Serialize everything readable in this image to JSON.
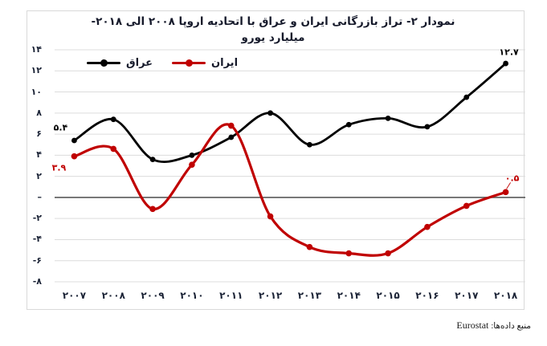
{
  "title": {
    "line1": "نمودار ۲- تراز بازرگانی ایران و عراق با اتحادیه اروپا ۲۰۰۸ الی ۲۰۱۸-",
    "line2": "میلیارد یورو"
  },
  "footer": {
    "label_fa": "منبع داده‌ها:",
    "source": "Eurostat"
  },
  "chart_data": {
    "type": "line",
    "x": [
      2007,
      2008,
      2009,
      2010,
      2011,
      2012,
      2013,
      2014,
      2015,
      2016,
      2017,
      2018
    ],
    "x_labels_fa": [
      "۲۰۰۷",
      "۲۰۰۸",
      "۲۰۰۹",
      "۲۰۱۰",
      "۲۰۱۱",
      "۲۰۱۲",
      "۲۰۱۳",
      "۲۰۱۴",
      "۲۰۱۵",
      "۲۰۱۶",
      "۲۰۱۷",
      "۲۰۱۸"
    ],
    "ylim": [
      -8,
      14
    ],
    "ytick_step": 2,
    "yticks": [
      {
        "value": 14,
        "label": "۱۴"
      },
      {
        "value": 12,
        "label": "۱۲"
      },
      {
        "value": 10,
        "label": "۱۰"
      },
      {
        "value": 8,
        "label": "۸"
      },
      {
        "value": 6,
        "label": "۶"
      },
      {
        "value": 4,
        "label": "۴"
      },
      {
        "value": 2,
        "label": "۲"
      },
      {
        "value": 0,
        "label": "–"
      },
      {
        "value": -2,
        "label": "-۲"
      },
      {
        "value": -4,
        "label": "-۴"
      },
      {
        "value": -6,
        "label": "-۶"
      },
      {
        "value": -8,
        "label": "-۸"
      }
    ],
    "grid": true,
    "gridline_color": "#dcdcdc",
    "zero_line_color": "#595959",
    "legend_position": "top-left",
    "series": [
      {
        "name": "عراق",
        "color": "#000000",
        "values": [
          5.4,
          7.4,
          3.6,
          4.0,
          5.7,
          8.0,
          5.0,
          6.9,
          7.5,
          6.7,
          9.5,
          12.7
        ],
        "annotations": [
          {
            "index": 0,
            "text": "۵.۴",
            "dx": -17,
            "dy": -16,
            "leader": false
          },
          {
            "index": 11,
            "text": "۱۲.۷",
            "dx": 4,
            "dy": -14,
            "leader": false
          }
        ]
      },
      {
        "name": "ایران",
        "color": "#c00000",
        "values": [
          3.9,
          4.6,
          -1.1,
          3.1,
          6.8,
          -1.8,
          -4.7,
          -5.3,
          -5.3,
          -2.8,
          -0.8,
          0.5
        ],
        "annotations": [
          {
            "index": 0,
            "text": "۳.۹",
            "dx": -19,
            "dy": 14,
            "leader": false
          },
          {
            "index": 11,
            "text": "۰.۵",
            "dx": 8,
            "dy": -17,
            "leader": true
          }
        ]
      }
    ]
  }
}
